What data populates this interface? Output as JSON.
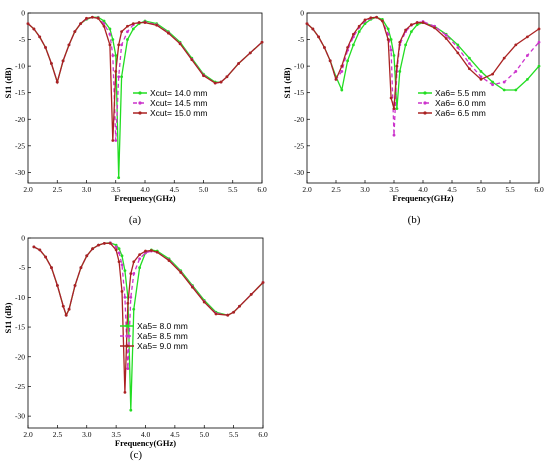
{
  "chart_data": [
    {
      "type": "line",
      "caption": "(a)",
      "xlabel": "Frequency(GHz)",
      "ylabel": "S11 (dB)",
      "xlim": [
        2.0,
        6.0
      ],
      "ylim": [
        -32,
        0
      ],
      "xticks": [
        "2.0",
        "2.5",
        "3.0",
        "3.5",
        "4.0",
        "4.5",
        "5.0",
        "5.5",
        "6.0"
      ],
      "yticks": [
        "0",
        "-5",
        "-10",
        "-15",
        "-20",
        "-25",
        "-30"
      ],
      "legend_position": "center-right",
      "x": [
        2.0,
        2.1,
        2.2,
        2.3,
        2.4,
        2.5,
        2.6,
        2.7,
        2.8,
        2.9,
        3.0,
        3.1,
        3.2,
        3.3,
        3.4,
        3.45,
        3.5,
        3.55,
        3.6,
        3.7,
        3.8,
        3.9,
        4.0,
        4.2,
        4.4,
        4.6,
        4.8,
        5.0,
        5.2,
        5.3,
        5.4,
        5.6,
        5.8,
        6.0
      ],
      "series": [
        {
          "name": "Xcut= 14.0 mm",
          "color": "#22dd22",
          "dash": "",
          "values": [
            -2,
            -3,
            -4.5,
            -6.5,
            -9.5,
            -13,
            -9,
            -6,
            -3.5,
            -2,
            -1.2,
            -0.8,
            -0.8,
            -1.5,
            -3,
            -5,
            -8,
            -31,
            -12,
            -5,
            -3,
            -2,
            -1.5,
            -2,
            -3.5,
            -5.5,
            -8.5,
            -11.5,
            -13,
            -13,
            -12,
            -9.5,
            -7.5,
            -5.5
          ]
        },
        {
          "name": "Xcut= 14.5 mm",
          "color": "#cc33cc",
          "dash": "4,3",
          "values": [
            -2,
            -3,
            -4.5,
            -6.5,
            -9.5,
            -13,
            -9,
            -6,
            -3.5,
            -2,
            -1.1,
            -0.8,
            -0.9,
            -2,
            -4,
            -8,
            -24,
            -12,
            -6,
            -3.5,
            -2.2,
            -1.8,
            -1.7,
            -2.2,
            -3.7,
            -5.7,
            -8.7,
            -11.7,
            -13.2,
            -13,
            -12,
            -9.5,
            -7.5,
            -5.5
          ]
        },
        {
          "name": "Xcut= 15.0 mm",
          "color": "#aa2222",
          "dash": "",
          "values": [
            -2,
            -3,
            -4.5,
            -6.5,
            -9.5,
            -13,
            -9,
            -6,
            -3.5,
            -2,
            -1.0,
            -0.8,
            -1.0,
            -2.5,
            -6,
            -24,
            -11,
            -6,
            -3.5,
            -2.5,
            -2,
            -1.8,
            -1.8,
            -2.3,
            -3.8,
            -5.8,
            -8.8,
            -11.8,
            -13.2,
            -13,
            -12,
            -9.5,
            -7.5,
            -5.5
          ]
        }
      ]
    },
    {
      "type": "line",
      "caption": "(b)",
      "xlabel": "Frequency(GHz)",
      "ylabel": "S11 (dB)",
      "xlim": [
        2.0,
        6.0
      ],
      "ylim": [
        -32,
        0
      ],
      "xticks": [
        "2.0",
        "2.5",
        "3.0",
        "3.5",
        "4.0",
        "4.5",
        "5.0",
        "5.5",
        "6.0"
      ],
      "yticks": [
        "0",
        "-5",
        "-10",
        "-15",
        "-20",
        "-25",
        "-30"
      ],
      "legend_position": "center-right",
      "x": [
        2.0,
        2.1,
        2.2,
        2.3,
        2.4,
        2.5,
        2.6,
        2.7,
        2.8,
        2.9,
        3.0,
        3.1,
        3.2,
        3.3,
        3.4,
        3.45,
        3.5,
        3.55,
        3.6,
        3.7,
        3.8,
        3.9,
        4.0,
        4.2,
        4.4,
        4.6,
        4.8,
        5.0,
        5.2,
        5.4,
        5.6,
        5.8,
        6.0
      ],
      "series": [
        {
          "name": "Xa6= 5.5 mm",
          "color": "#22dd22",
          "dash": "",
          "values": [
            -2,
            -3,
            -4.5,
            -6.5,
            -9,
            -12,
            -14.5,
            -9,
            -6,
            -3.5,
            -2,
            -1.2,
            -0.8,
            -1.2,
            -3,
            -5,
            -8,
            -18,
            -11,
            -6,
            -3.5,
            -2.2,
            -1.8,
            -2.5,
            -4,
            -6,
            -8.5,
            -11,
            -13,
            -14.5,
            -14.5,
            -12.5,
            -10
          ]
        },
        {
          "name": "Xa6= 6.0 mm",
          "color": "#cc33cc",
          "dash": "4,3",
          "values": [
            -2,
            -3,
            -4.5,
            -6.5,
            -9,
            -12.5,
            -11,
            -7,
            -4.5,
            -2.7,
            -1.5,
            -1,
            -0.8,
            -1.5,
            -4,
            -7,
            -23,
            -11,
            -6,
            -3.5,
            -2.3,
            -1.8,
            -1.6,
            -2.5,
            -4.2,
            -6.5,
            -9.5,
            -12,
            -13.5,
            -13,
            -11,
            -8,
            -5.5
          ]
        },
        {
          "name": "Xa6= 6.5 mm",
          "color": "#aa2222",
          "dash": "",
          "values": [
            -2,
            -3,
            -4.5,
            -6.5,
            -9,
            -12.5,
            -10,
            -6.5,
            -4,
            -2.5,
            -1.3,
            -0.9,
            -0.8,
            -1.5,
            -5,
            -16,
            -18,
            -10,
            -5.5,
            -3.2,
            -2.2,
            -1.8,
            -1.8,
            -2.8,
            -4.8,
            -7.5,
            -10.5,
            -12.5,
            -11.5,
            -8.5,
            -6,
            -4.5,
            -3
          ]
        }
      ]
    },
    {
      "type": "line",
      "caption": "(c)",
      "xlabel": "Frequency(GHz)",
      "ylabel": "S11 (dB)",
      "xlim": [
        2.0,
        6.0
      ],
      "ylim": [
        -32,
        0
      ],
      "xticks": [
        "2.0",
        "2.5",
        "3.0",
        "3.5",
        "4.0",
        "4.5",
        "5.0",
        "5.5",
        "6.0"
      ],
      "yticks": [
        "0",
        "-5",
        "-10",
        "-15",
        "-20",
        "-25",
        "-30"
      ],
      "legend_position": "center-right",
      "x": [
        2.1,
        2.2,
        2.3,
        2.4,
        2.5,
        2.6,
        2.65,
        2.7,
        2.8,
        2.9,
        3.0,
        3.1,
        3.2,
        3.3,
        3.4,
        3.5,
        3.55,
        3.6,
        3.65,
        3.7,
        3.75,
        3.8,
        3.9,
        4.0,
        4.1,
        4.2,
        4.4,
        4.6,
        4.8,
        5.0,
        5.2,
        5.4,
        5.5,
        5.6,
        5.8,
        6.0
      ],
      "series": [
        {
          "name": "Xa5= 8.0 mm",
          "color": "#22dd22",
          "dash": "",
          "values": [
            -1.5,
            -2,
            -3.2,
            -5,
            -8,
            -11.5,
            -13,
            -12,
            -8,
            -5,
            -3,
            -1.8,
            -1.2,
            -0.9,
            -0.8,
            -1.2,
            -1.8,
            -3,
            -5.5,
            -10,
            -29,
            -12,
            -5,
            -2.5,
            -2,
            -2.2,
            -3.5,
            -5.5,
            -8,
            -10.5,
            -12.5,
            -13,
            -12.5,
            -11.5,
            -9.5,
            -7.5
          ]
        },
        {
          "name": "Xa5= 8.5 mm",
          "color": "#cc33cc",
          "dash": "4,3",
          "values": [
            -1.5,
            -2,
            -3.2,
            -5,
            -8,
            -11.5,
            -13,
            -12,
            -8,
            -5,
            -3,
            -1.8,
            -1.2,
            -0.9,
            -0.8,
            -1.5,
            -2.5,
            -4.5,
            -10,
            -22,
            -10,
            -6,
            -3.5,
            -2.5,
            -2.2,
            -2.4,
            -3.7,
            -5.7,
            -8.2,
            -10.7,
            -12.7,
            -13,
            -12.5,
            -11.5,
            -9.5,
            -7.5
          ]
        },
        {
          "name": "Xa5= 9.0 mm",
          "color": "#aa2222",
          "dash": "",
          "values": [
            -1.5,
            -2,
            -3.2,
            -5,
            -8,
            -11.5,
            -13,
            -12,
            -8,
            -5,
            -3,
            -1.8,
            -1.2,
            -0.9,
            -0.9,
            -2,
            -4,
            -9,
            -26,
            -11,
            -6,
            -4,
            -2.8,
            -2.2,
            -2.1,
            -2.4,
            -3.8,
            -5.8,
            -8.3,
            -10.8,
            -12.8,
            -13,
            -12.5,
            -11.5,
            -9.5,
            -7.5
          ]
        }
      ]
    }
  ]
}
